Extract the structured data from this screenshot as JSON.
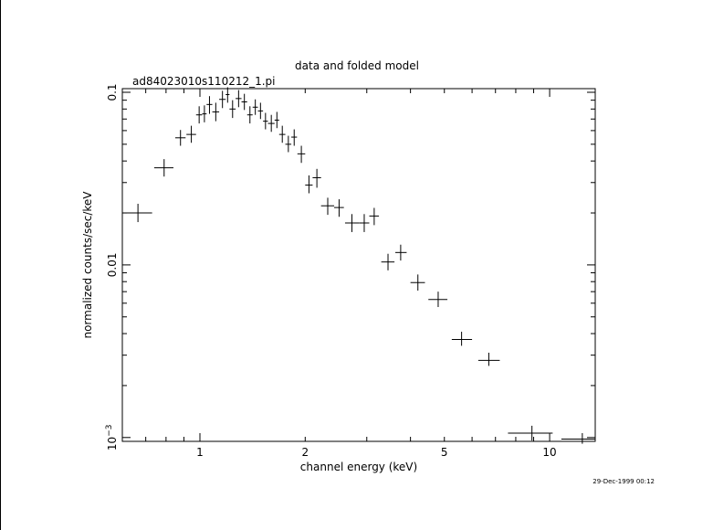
{
  "chart_data": {
    "type": "scatter",
    "title": "data and folded model",
    "subtitle": "ad84023010s110212_1.pi",
    "xlabel": "channel energy (keV)",
    "ylabel": "normalized counts/sec/keV",
    "x_scale": "log",
    "y_scale": "log",
    "xlim": [
      0.6,
      13.5
    ],
    "ylim": [
      0.00095,
      0.105
    ],
    "grid": false,
    "x_ticks": [
      {
        "value": 1,
        "label": "1"
      },
      {
        "value": 2,
        "label": "2"
      },
      {
        "value": 5,
        "label": "5"
      },
      {
        "value": 10,
        "label": "10"
      }
    ],
    "y_ticks": [
      {
        "value": 0.1,
        "label": "0.1",
        "exp": ""
      },
      {
        "value": 0.01,
        "label": "0.01",
        "exp": ""
      },
      {
        "value": 0.001,
        "label": "10",
        "exp": "−3"
      }
    ],
    "series": [
      {
        "name": "",
        "points": [
          {
            "x": 0.665,
            "xlo": 0.6,
            "xhi": 0.73,
            "y": 0.02,
            "ylo": 0.0177,
            "yhi": 0.0226
          },
          {
            "x": 0.79,
            "xlo": 0.74,
            "xhi": 0.84,
            "y": 0.0365,
            "ylo": 0.0325,
            "yhi": 0.041
          },
          {
            "x": 0.88,
            "xlo": 0.85,
            "xhi": 0.91,
            "y": 0.0545,
            "ylo": 0.049,
            "yhi": 0.0605
          },
          {
            "x": 0.945,
            "xlo": 0.915,
            "xhi": 0.975,
            "y": 0.057,
            "ylo": 0.051,
            "yhi": 0.064
          },
          {
            "x": 0.995,
            "xlo": 0.975,
            "xhi": 1.015,
            "y": 0.074,
            "ylo": 0.066,
            "yhi": 0.083
          },
          {
            "x": 1.03,
            "xlo": 1.015,
            "xhi": 1.045,
            "y": 0.075,
            "ylo": 0.067,
            "yhi": 0.084
          },
          {
            "x": 1.065,
            "xlo": 1.045,
            "xhi": 1.085,
            "y": 0.085,
            "ylo": 0.075,
            "yhi": 0.095
          },
          {
            "x": 1.11,
            "xlo": 1.085,
            "xhi": 1.135,
            "y": 0.077,
            "ylo": 0.068,
            "yhi": 0.087
          },
          {
            "x": 1.16,
            "xlo": 1.135,
            "xhi": 1.185,
            "y": 0.091,
            "ylo": 0.081,
            "yhi": 0.102
          },
          {
            "x": 1.2,
            "xlo": 1.185,
            "xhi": 1.215,
            "y": 0.097,
            "ylo": 0.087,
            "yhi": 0.107
          },
          {
            "x": 1.24,
            "xlo": 1.215,
            "xhi": 1.265,
            "y": 0.08,
            "ylo": 0.071,
            "yhi": 0.09
          },
          {
            "x": 1.29,
            "xlo": 1.265,
            "xhi": 1.315,
            "y": 0.092,
            "ylo": 0.082,
            "yhi": 0.103
          },
          {
            "x": 1.34,
            "xlo": 1.315,
            "xhi": 1.365,
            "y": 0.088,
            "ylo": 0.079,
            "yhi": 0.098
          },
          {
            "x": 1.39,
            "xlo": 1.365,
            "xhi": 1.415,
            "y": 0.074,
            "ylo": 0.066,
            "yhi": 0.083
          },
          {
            "x": 1.44,
            "xlo": 1.415,
            "xhi": 1.465,
            "y": 0.082,
            "ylo": 0.074,
            "yhi": 0.091
          },
          {
            "x": 1.49,
            "xlo": 1.465,
            "xhi": 1.515,
            "y": 0.078,
            "ylo": 0.07,
            "yhi": 0.087
          },
          {
            "x": 1.54,
            "xlo": 1.515,
            "xhi": 1.565,
            "y": 0.068,
            "ylo": 0.061,
            "yhi": 0.076
          },
          {
            "x": 1.6,
            "xlo": 1.565,
            "xhi": 1.635,
            "y": 0.066,
            "ylo": 0.059,
            "yhi": 0.074
          },
          {
            "x": 1.66,
            "xlo": 1.635,
            "xhi": 1.685,
            "y": 0.069,
            "ylo": 0.062,
            "yhi": 0.077
          },
          {
            "x": 1.72,
            "xlo": 1.685,
            "xhi": 1.755,
            "y": 0.057,
            "ylo": 0.051,
            "yhi": 0.064
          },
          {
            "x": 1.79,
            "xlo": 1.755,
            "xhi": 1.825,
            "y": 0.05,
            "ylo": 0.045,
            "yhi": 0.056
          },
          {
            "x": 1.86,
            "xlo": 1.825,
            "xhi": 1.895,
            "y": 0.055,
            "ylo": 0.049,
            "yhi": 0.061
          },
          {
            "x": 1.95,
            "xlo": 1.9,
            "xhi": 2.0,
            "y": 0.044,
            "ylo": 0.039,
            "yhi": 0.049
          },
          {
            "x": 2.05,
            "xlo": 2.0,
            "xhi": 2.1,
            "y": 0.029,
            "ylo": 0.026,
            "yhi": 0.033
          },
          {
            "x": 2.16,
            "xlo": 2.1,
            "xhi": 2.22,
            "y": 0.032,
            "ylo": 0.028,
            "yhi": 0.036
          },
          {
            "x": 2.32,
            "xlo": 2.22,
            "xhi": 2.42,
            "y": 0.022,
            "ylo": 0.0195,
            "yhi": 0.0245
          },
          {
            "x": 2.5,
            "xlo": 2.42,
            "xhi": 2.58,
            "y": 0.0215,
            "ylo": 0.019,
            "yhi": 0.024
          },
          {
            "x": 2.72,
            "xlo": 2.6,
            "xhi": 2.85,
            "y": 0.0175,
            "ylo": 0.0155,
            "yhi": 0.0197
          },
          {
            "x": 2.95,
            "xlo": 2.85,
            "xhi": 3.05,
            "y": 0.0175,
            "ylo": 0.0155,
            "yhi": 0.0197
          },
          {
            "x": 3.15,
            "xlo": 3.05,
            "xhi": 3.25,
            "y": 0.0192,
            "ylo": 0.017,
            "yhi": 0.0214
          },
          {
            "x": 3.45,
            "xlo": 3.3,
            "xhi": 3.6,
            "y": 0.0104,
            "ylo": 0.0093,
            "yhi": 0.0116
          },
          {
            "x": 3.75,
            "xlo": 3.62,
            "xhi": 3.9,
            "y": 0.0118,
            "ylo": 0.0106,
            "yhi": 0.0131
          },
          {
            "x": 4.2,
            "xlo": 4.0,
            "xhi": 4.4,
            "y": 0.0079,
            "ylo": 0.0071,
            "yhi": 0.0088
          },
          {
            "x": 4.8,
            "xlo": 4.5,
            "xhi": 5.1,
            "y": 0.0063,
            "ylo": 0.0057,
            "yhi": 0.007
          },
          {
            "x": 5.6,
            "xlo": 5.25,
            "xhi": 6.0,
            "y": 0.0037,
            "ylo": 0.0034,
            "yhi": 0.0041
          },
          {
            "x": 6.7,
            "xlo": 6.25,
            "xhi": 7.2,
            "y": 0.0028,
            "ylo": 0.0026,
            "yhi": 0.0031
          },
          {
            "x": 8.9,
            "xlo": 7.6,
            "xhi": 10.2,
            "y": 0.00106,
            "ylo": 0.00096,
            "yhi": 0.00117
          },
          {
            "x": 12.4,
            "xlo": 10.8,
            "xhi": 13.5,
            "y": 0.00098,
            "ylo": 0.00092,
            "yhi": 0.00106
          }
        ]
      }
    ]
  },
  "footer": {
    "timestamp": "29-Dec-1999 00:12"
  }
}
